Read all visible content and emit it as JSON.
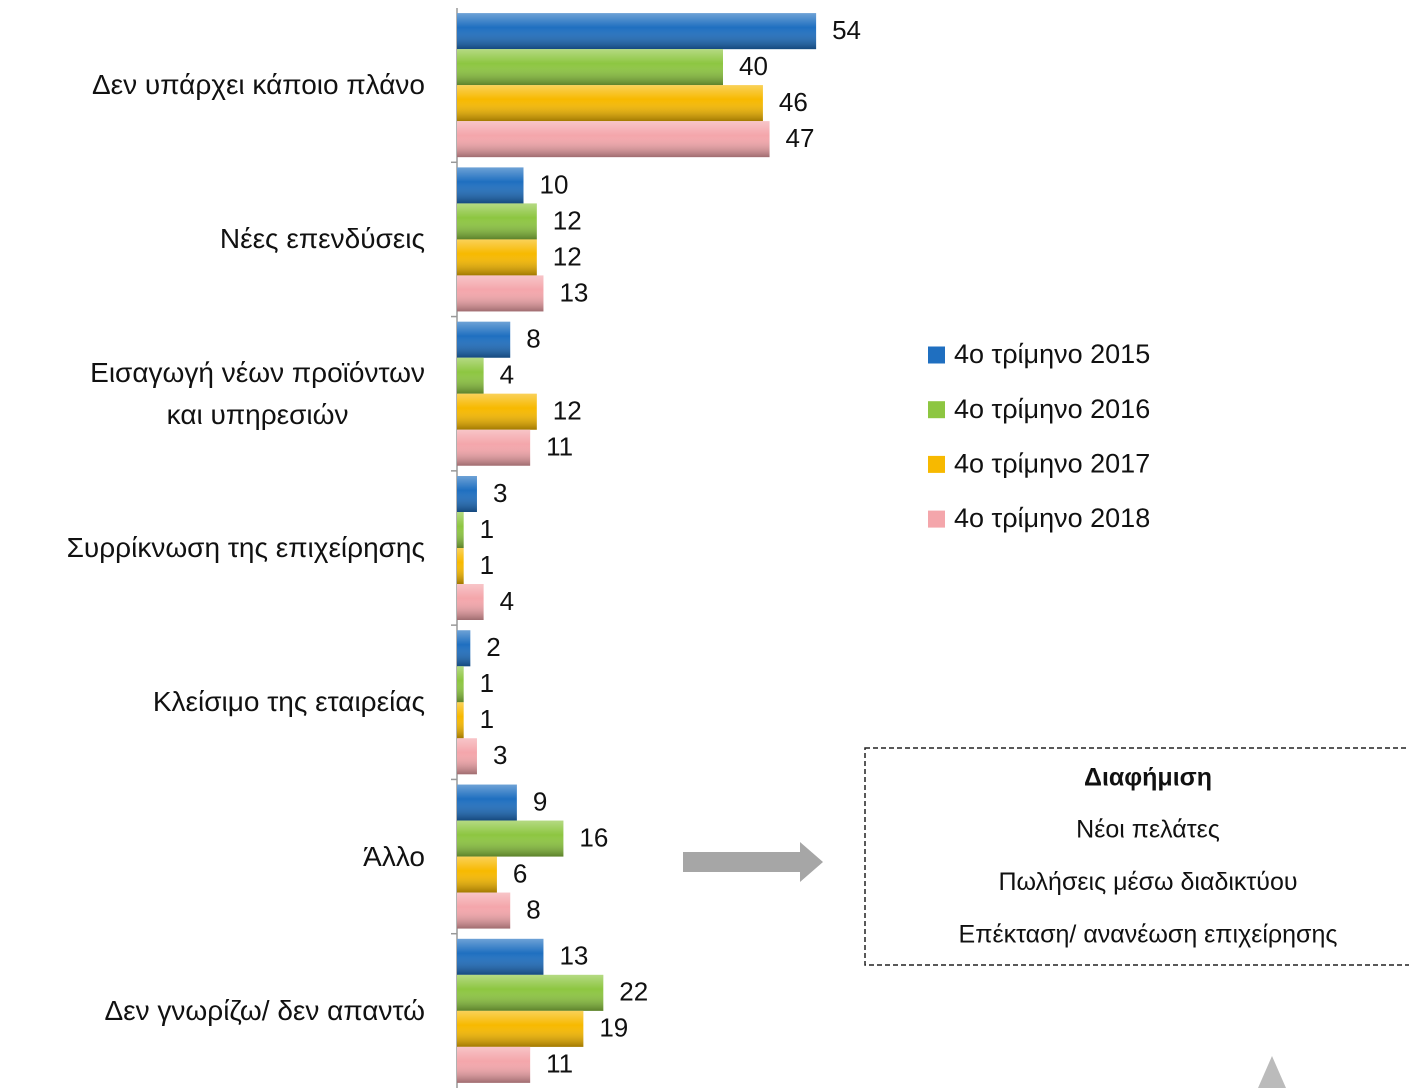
{
  "chart_data": {
    "type": "bar",
    "orientation": "horizontal",
    "categories": [
      "Δεν υπάρχει κάποιο πλάνο",
      "Νέες επενδύσεις",
      "Εισαγωγή νέων προϊόντων\nκαι υπηρεσιών",
      "Συρρίκνωση της επιχείρησης",
      "Κλείσιμο της εταιρείας",
      "Άλλο",
      "Δεν γνωρίζω/ δεν απαντώ"
    ],
    "series": [
      {
        "name": "4ο τρίμηνο 2015",
        "color": "#1f6fc0",
        "values": [
          54,
          10,
          8,
          3,
          2,
          9,
          13
        ]
      },
      {
        "name": "4ο τρίμηνο 2016",
        "color": "#8dc641",
        "values": [
          40,
          12,
          4,
          1,
          1,
          16,
          22
        ]
      },
      {
        "name": "4ο τρίμηνο 2017",
        "color": "#f7b900",
        "values": [
          46,
          12,
          12,
          1,
          1,
          6,
          19
        ]
      },
      {
        "name": "4ο τρίμηνο 2018",
        "color": "#f4a6ab",
        "values": [
          47,
          13,
          11,
          4,
          3,
          8,
          11
        ]
      }
    ],
    "xlim": [
      0,
      100
    ],
    "legend": "right",
    "annotation": {
      "title": "Διαφήμιση",
      "items": [
        "Νέοι πελάτες",
        "Πωλήσεις μέσω διαδικτύου",
        "Επέκταση/ ανανέωση επιχείρησης"
      ]
    }
  }
}
